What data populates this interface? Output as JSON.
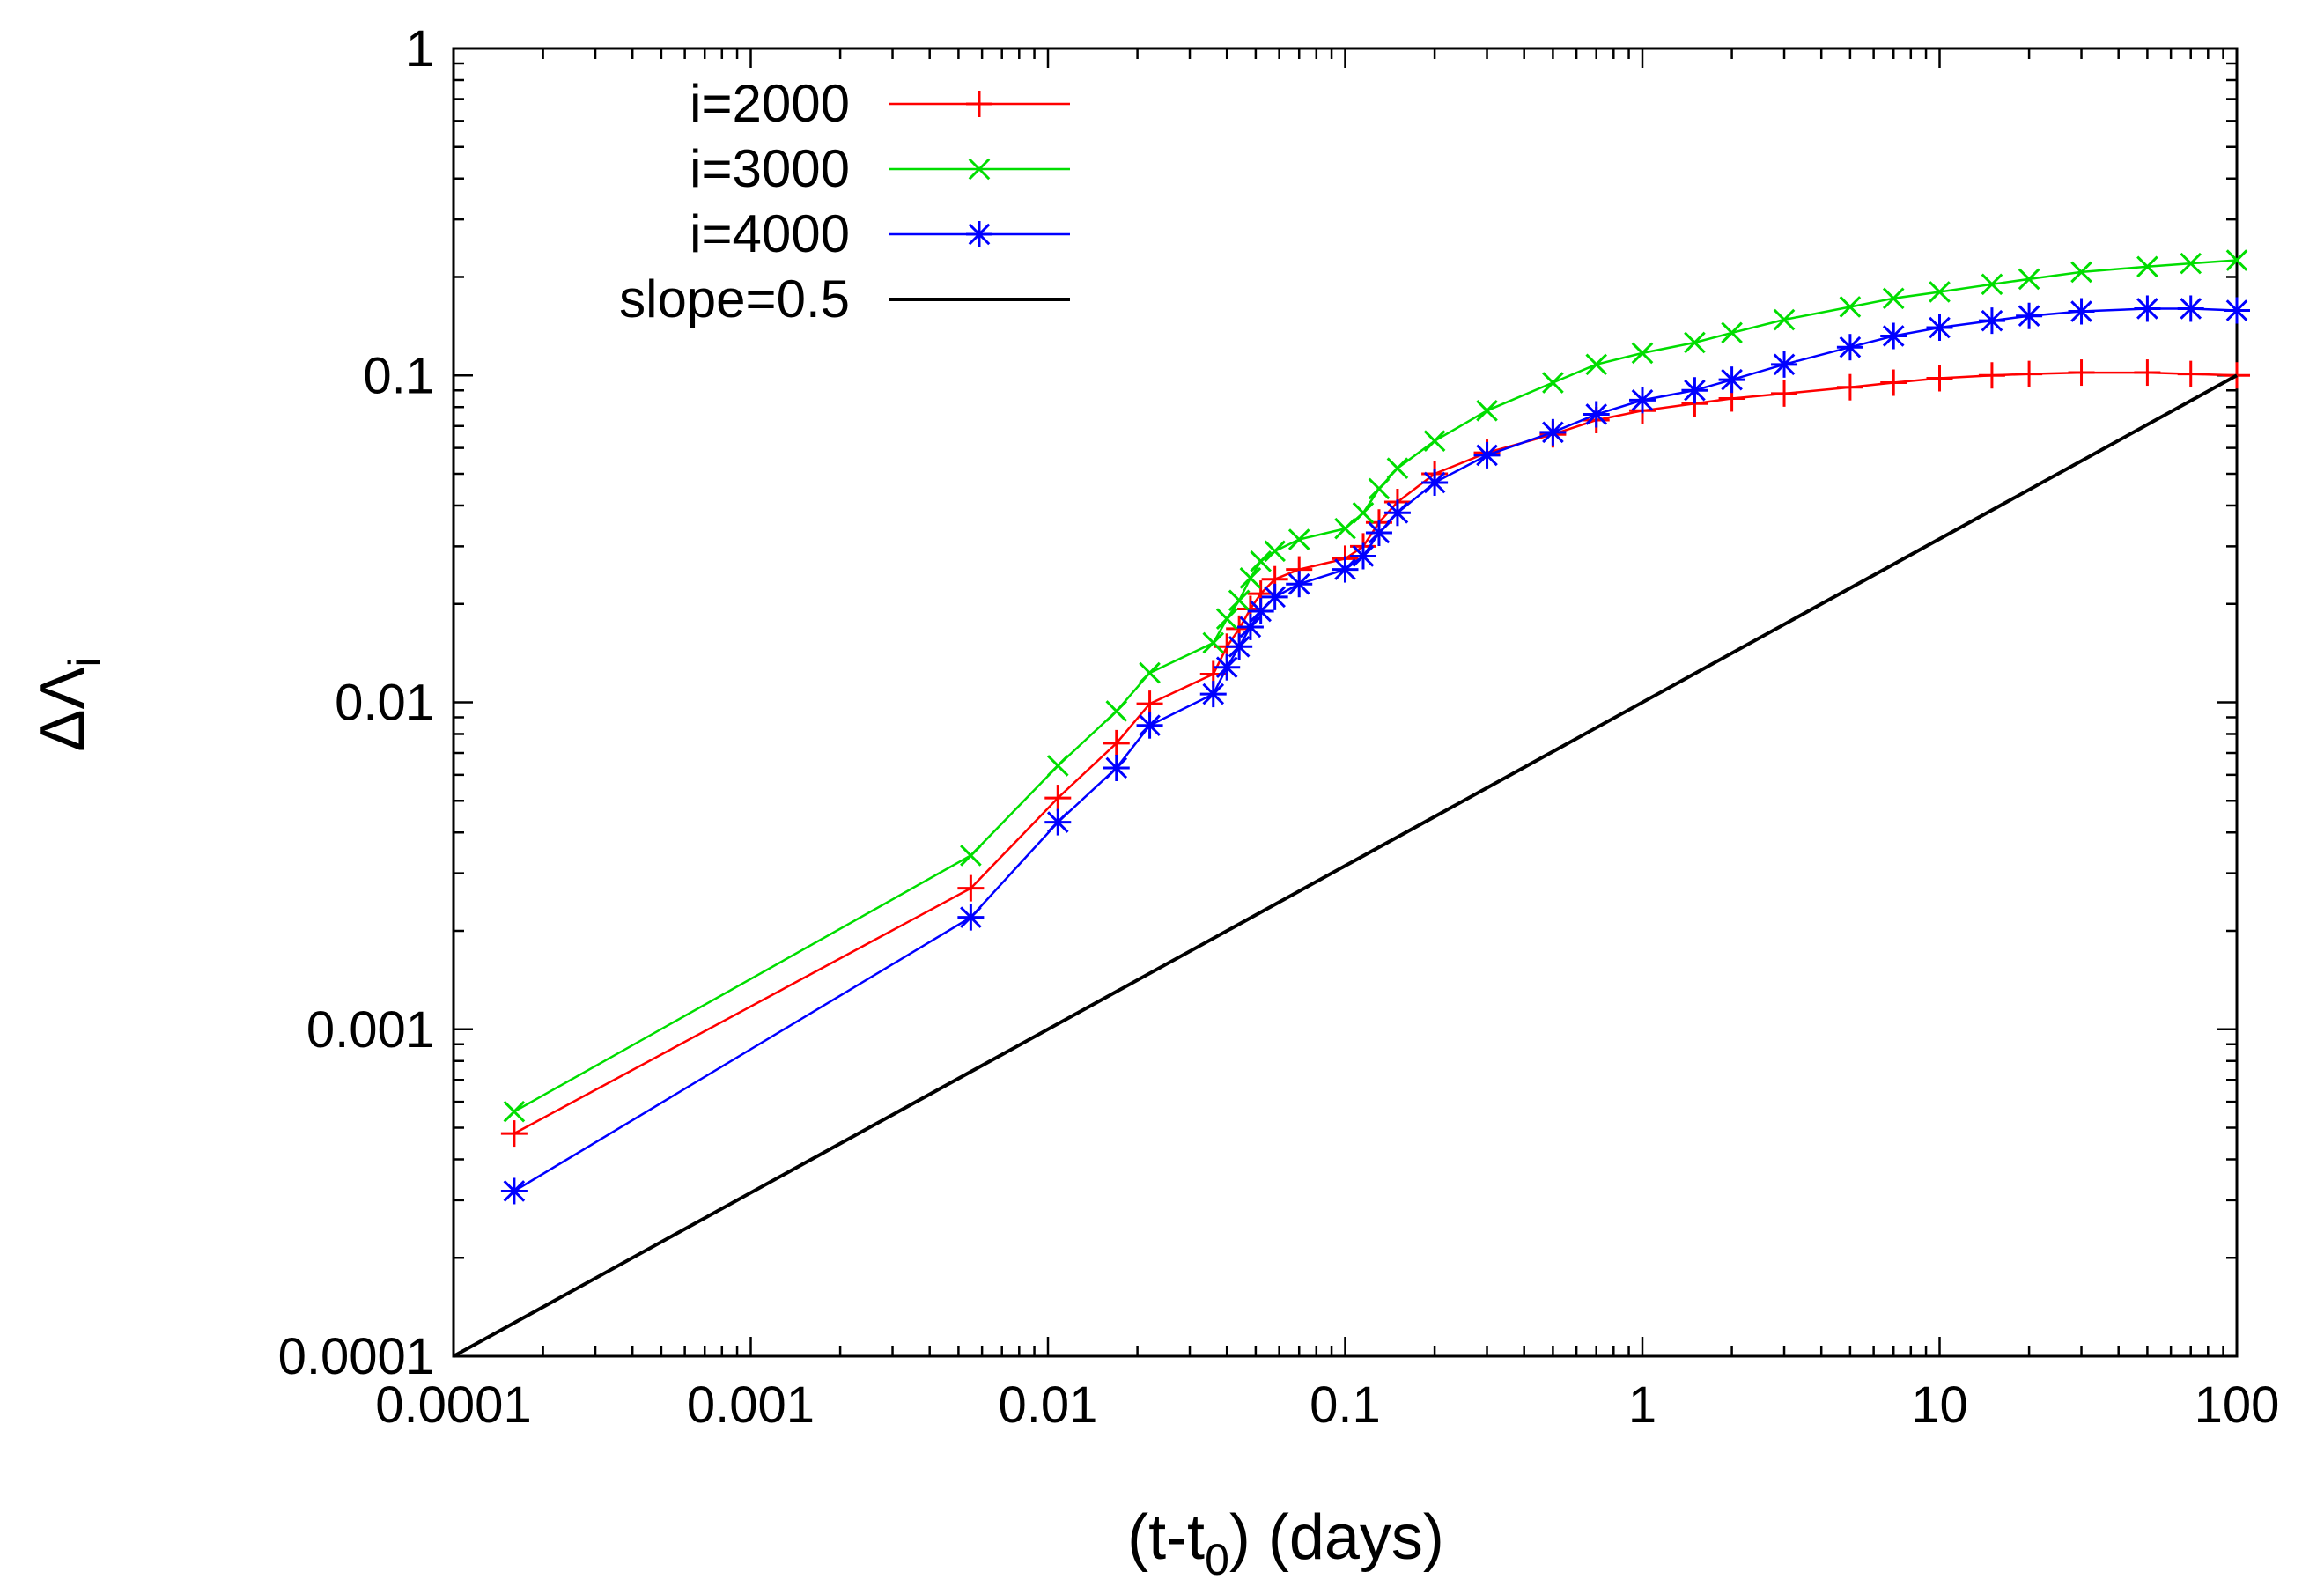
{
  "chart_data": {
    "type": "line",
    "xscale": "log",
    "yscale": "log",
    "xlim": [
      0.0001,
      100
    ],
    "ylim": [
      0.0001,
      1
    ],
    "xlabel": "(t-t0) (days)",
    "xlabel_main": "(t-t",
    "xlabel_sub": "0",
    "xlabel_tail": ") (days)",
    "ylabel": "ΔΛi",
    "ylabel_main": "ΔΛ",
    "ylabel_sub": "i",
    "x_ticks": [
      {
        "value": 0.0001,
        "label": "0.0001"
      },
      {
        "value": 0.001,
        "label": "0.001"
      },
      {
        "value": 0.01,
        "label": "0.01"
      },
      {
        "value": 0.1,
        "label": "0.1"
      },
      {
        "value": 1,
        "label": "1"
      },
      {
        "value": 10,
        "label": "10"
      },
      {
        "value": 100,
        "label": "100"
      }
    ],
    "y_ticks": [
      {
        "value": 0.0001,
        "label": "0.0001"
      },
      {
        "value": 0.001,
        "label": "0.001"
      },
      {
        "value": 0.01,
        "label": "0.01"
      },
      {
        "value": 0.1,
        "label": "0.1"
      },
      {
        "value": 1,
        "label": "1"
      }
    ],
    "legend_position": "top-left",
    "series": [
      {
        "name": "i=2000",
        "color": "#ff0000",
        "marker": "plus",
        "x": [
          0.00016,
          0.0055,
          0.0108,
          0.017,
          0.022,
          0.036,
          0.04,
          0.044,
          0.048,
          0.052,
          0.058,
          0.07,
          0.1,
          0.115,
          0.13,
          0.15,
          0.2,
          0.3,
          0.5,
          0.7,
          1.0,
          1.5,
          2.0,
          3.0,
          5.0,
          7.0,
          10,
          15,
          20,
          30,
          50,
          70,
          100
        ],
        "y": [
          0.00048,
          0.0027,
          0.0051,
          0.0075,
          0.0099,
          0.0122,
          0.0148,
          0.0168,
          0.0193,
          0.0215,
          0.0238,
          0.0255,
          0.0275,
          0.03,
          0.0355,
          0.041,
          0.05,
          0.058,
          0.066,
          0.073,
          0.078,
          0.082,
          0.085,
          0.088,
          0.092,
          0.095,
          0.098,
          0.1,
          0.101,
          0.102,
          0.102,
          0.101,
          0.1
        ]
      },
      {
        "name": "i=3000",
        "color": "#00dd00",
        "marker": "cross",
        "x": [
          0.00016,
          0.0055,
          0.0108,
          0.017,
          0.022,
          0.036,
          0.04,
          0.044,
          0.048,
          0.052,
          0.058,
          0.07,
          0.1,
          0.115,
          0.13,
          0.15,
          0.2,
          0.3,
          0.5,
          0.7,
          1.0,
          1.5,
          2.0,
          3.0,
          5.0,
          7.0,
          10,
          15,
          20,
          30,
          50,
          70,
          100
        ],
        "y": [
          0.00056,
          0.0034,
          0.0064,
          0.0094,
          0.0123,
          0.0152,
          0.018,
          0.0205,
          0.024,
          0.027,
          0.029,
          0.0315,
          0.034,
          0.038,
          0.045,
          0.052,
          0.063,
          0.078,
          0.095,
          0.108,
          0.117,
          0.126,
          0.135,
          0.148,
          0.162,
          0.172,
          0.18,
          0.19,
          0.197,
          0.207,
          0.215,
          0.22,
          0.225
        ]
      },
      {
        "name": "i=4000",
        "color": "#0000ff",
        "marker": "star",
        "x": [
          0.00016,
          0.0055,
          0.0108,
          0.017,
          0.022,
          0.036,
          0.04,
          0.044,
          0.048,
          0.052,
          0.058,
          0.07,
          0.1,
          0.115,
          0.13,
          0.15,
          0.2,
          0.3,
          0.5,
          0.7,
          1.0,
          1.5,
          2.0,
          3.0,
          5.0,
          7.0,
          10,
          15,
          20,
          30,
          50,
          70,
          100
        ],
        "y": [
          0.00032,
          0.0022,
          0.0043,
          0.0063,
          0.0085,
          0.0106,
          0.0128,
          0.0148,
          0.017,
          0.019,
          0.021,
          0.023,
          0.0255,
          0.028,
          0.033,
          0.038,
          0.047,
          0.057,
          0.067,
          0.076,
          0.084,
          0.09,
          0.097,
          0.108,
          0.122,
          0.132,
          0.14,
          0.147,
          0.152,
          0.157,
          0.16,
          0.16,
          0.158
        ]
      },
      {
        "name": "slope=0.5",
        "color": "#000000",
        "marker": "none",
        "x": [
          0.0001,
          100
        ],
        "y": [
          0.0001,
          0.1
        ]
      }
    ]
  }
}
